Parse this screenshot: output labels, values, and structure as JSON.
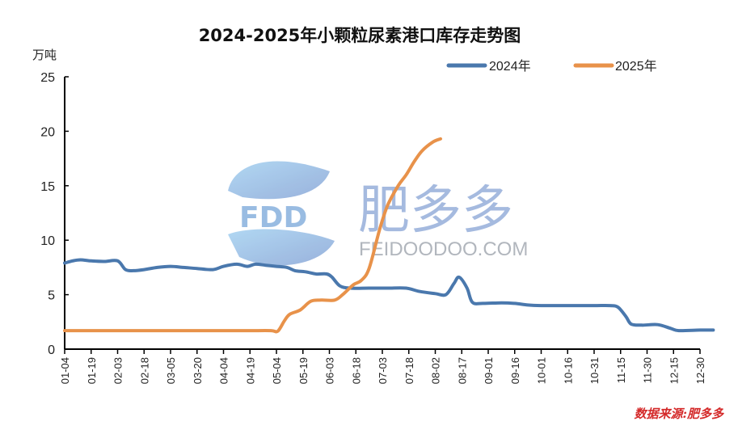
{
  "header": {
    "title": "2024-2025年小颗粒尿素港口库存走势图",
    "unit_label": "万吨"
  },
  "legend": {
    "items": [
      {
        "label": "2024年",
        "color": "#4a78ad"
      },
      {
        "label": "2025年",
        "color": "#e8924a"
      }
    ]
  },
  "watermark": {
    "logo_text": "FDD",
    "brand_cn": "肥多多",
    "brand_en": "FEIDOODOO.COM"
  },
  "footer": {
    "source": "数据来源:肥多多"
  },
  "chart_data": {
    "type": "line",
    "title": "2024-2025年小颗粒尿素港口库存走势图",
    "xlabel": "",
    "ylabel": "万吨",
    "ylim": [
      0,
      25
    ],
    "yticks": [
      0,
      5,
      10,
      15,
      20,
      25
    ],
    "grid": false,
    "legend_position": "top-right",
    "categories": [
      "01-04",
      "01-19",
      "02-03",
      "02-18",
      "03-05",
      "03-20",
      "04-04",
      "04-19",
      "05-04",
      "05-19",
      "06-03",
      "06-18",
      "07-03",
      "07-18",
      "08-02",
      "08-17",
      "09-01",
      "09-16",
      "10-01",
      "10-16",
      "10-31",
      "11-15",
      "11-30",
      "12-15",
      "12-30"
    ],
    "series": [
      {
        "name": "2024年",
        "color": "#4a78ad",
        "points": [
          [
            0,
            7.9
          ],
          [
            0.3,
            8.1
          ],
          [
            0.6,
            8.2
          ],
          [
            1.0,
            8.1
          ],
          [
            1.5,
            8.05
          ],
          [
            2.0,
            8.1
          ],
          [
            2.3,
            7.3
          ],
          [
            2.6,
            7.2
          ],
          [
            3.0,
            7.3
          ],
          [
            3.5,
            7.5
          ],
          [
            4.0,
            7.6
          ],
          [
            4.5,
            7.5
          ],
          [
            5.0,
            7.4
          ],
          [
            5.6,
            7.3
          ],
          [
            6.0,
            7.6
          ],
          [
            6.5,
            7.8
          ],
          [
            6.9,
            7.6
          ],
          [
            7.2,
            7.8
          ],
          [
            7.6,
            7.7
          ],
          [
            8.0,
            7.6
          ],
          [
            8.4,
            7.5
          ],
          [
            8.7,
            7.2
          ],
          [
            9.1,
            7.1
          ],
          [
            9.5,
            6.9
          ],
          [
            9.9,
            6.9
          ],
          [
            10.1,
            6.6
          ],
          [
            10.4,
            5.8
          ],
          [
            10.8,
            5.6
          ],
          [
            11.5,
            5.6
          ],
          [
            12.2,
            5.6
          ],
          [
            12.9,
            5.6
          ],
          [
            13.4,
            5.3
          ],
          [
            14.0,
            5.1
          ],
          [
            14.4,
            5.0
          ],
          [
            14.7,
            6.0
          ],
          [
            14.9,
            6.6
          ],
          [
            15.2,
            5.6
          ],
          [
            15.4,
            4.3
          ],
          [
            15.8,
            4.2
          ],
          [
            16.5,
            4.25
          ],
          [
            17.0,
            4.2
          ],
          [
            17.5,
            4.05
          ],
          [
            18.0,
            4.0
          ],
          [
            19.0,
            4.0
          ],
          [
            20.0,
            4.0
          ],
          [
            20.6,
            4.0
          ],
          [
            20.9,
            3.85
          ],
          [
            21.2,
            3.0
          ],
          [
            21.4,
            2.3
          ],
          [
            21.8,
            2.2
          ],
          [
            22.4,
            2.25
          ],
          [
            22.9,
            1.9
          ],
          [
            23.2,
            1.7
          ],
          [
            24.0,
            1.75
          ],
          [
            24.5,
            1.75
          ]
        ]
      },
      {
        "name": "2025年",
        "color": "#e8924a",
        "points": [
          [
            0,
            1.7
          ],
          [
            1,
            1.7
          ],
          [
            2,
            1.7
          ],
          [
            3,
            1.7
          ],
          [
            4,
            1.7
          ],
          [
            5,
            1.7
          ],
          [
            6,
            1.7
          ],
          [
            7,
            1.7
          ],
          [
            7.8,
            1.7
          ],
          [
            8.05,
            1.65
          ],
          [
            8.3,
            2.6
          ],
          [
            8.5,
            3.2
          ],
          [
            8.9,
            3.6
          ],
          [
            9.3,
            4.4
          ],
          [
            9.7,
            4.5
          ],
          [
            10.2,
            4.5
          ],
          [
            10.5,
            5.0
          ],
          [
            10.9,
            5.9
          ],
          [
            11.2,
            6.3
          ],
          [
            11.5,
            7.4
          ],
          [
            11.9,
            11.0
          ],
          [
            12.2,
            13.2
          ],
          [
            12.6,
            15.0
          ],
          [
            12.9,
            16.0
          ],
          [
            13.2,
            17.2
          ],
          [
            13.5,
            18.2
          ],
          [
            13.9,
            19.0
          ],
          [
            14.2,
            19.3
          ]
        ]
      }
    ]
  }
}
